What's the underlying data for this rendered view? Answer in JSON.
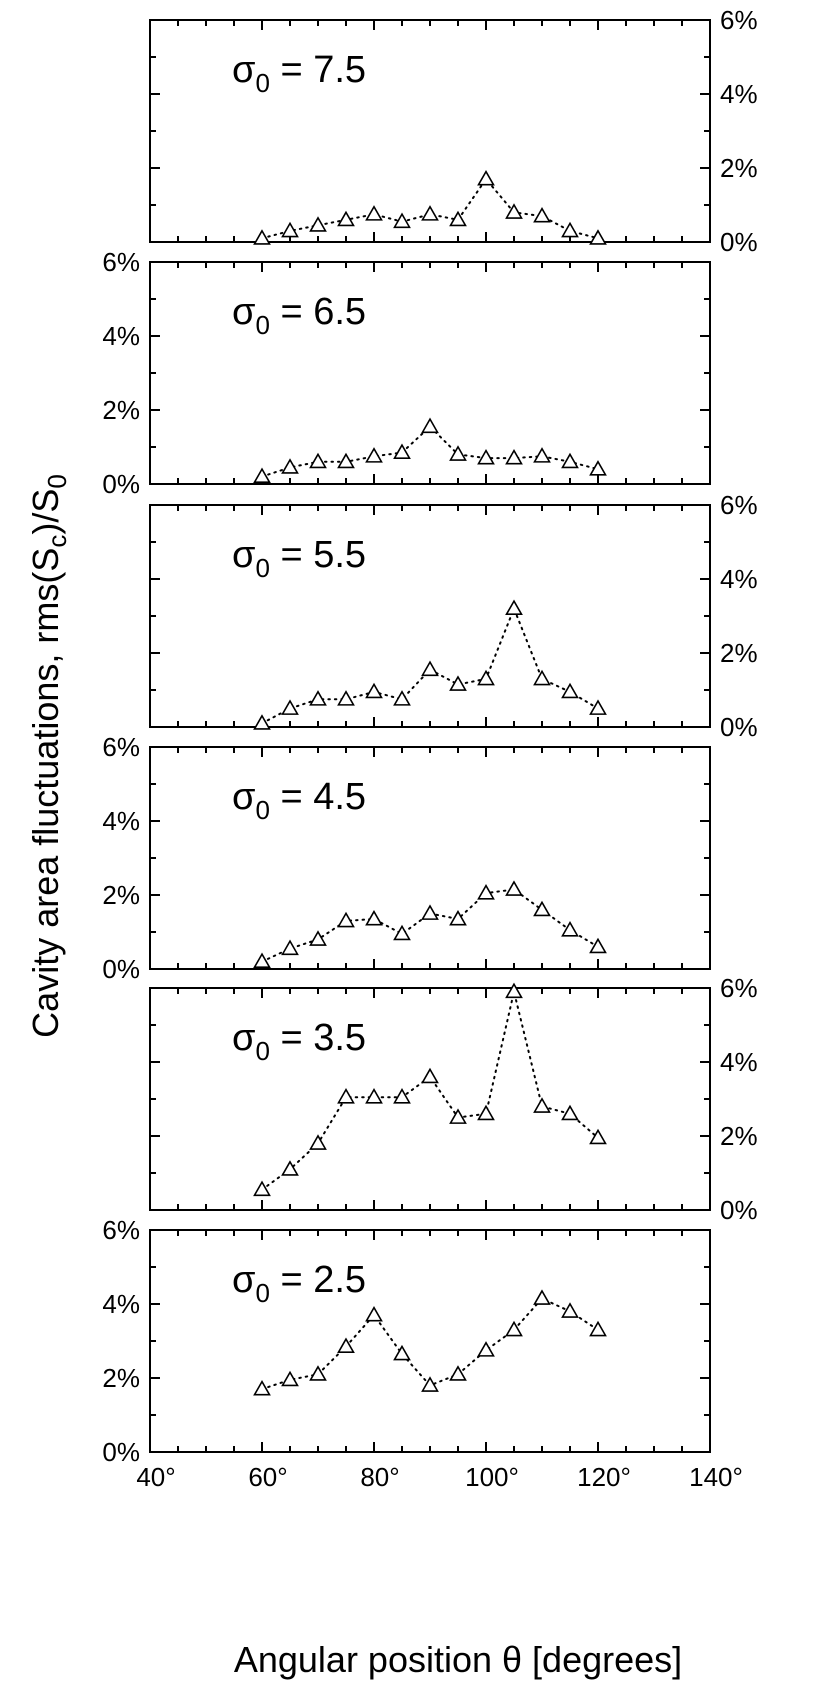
{
  "figure": {
    "xlabel": "Angular position θ [degrees]",
    "ylabel": "Cavity area fluctuations, rms(S",
    "ylabel_sub1": "c",
    "ylabel_mid": ")/S",
    "ylabel_sub2": "0"
  },
  "chart_data": [
    {
      "type": "line",
      "marker": "triangle",
      "line_style": "dotted",
      "label_symbol": "σ",
      "label_sub": "0",
      "label_value": " = 7.5",
      "x": [
        60,
        65,
        70,
        75,
        80,
        85,
        90,
        95,
        100,
        105,
        110,
        115,
        120
      ],
      "y": [
        0.1,
        0.3,
        0.45,
        0.6,
        0.75,
        0.55,
        0.75,
        0.6,
        1.7,
        0.8,
        0.7,
        0.3,
        0.1
      ],
      "xlim": [
        40,
        140
      ],
      "ylim": [
        0,
        6
      ],
      "yticks": [
        "0%",
        "2%",
        "4%",
        "6%"
      ],
      "y_axis_side": "right"
    },
    {
      "type": "line",
      "marker": "triangle",
      "line_style": "dotted",
      "label_symbol": "σ",
      "label_sub": "0",
      "label_value": " = 6.5",
      "x": [
        60,
        65,
        70,
        75,
        80,
        85,
        90,
        95,
        100,
        105,
        110,
        115,
        120
      ],
      "y": [
        0.2,
        0.45,
        0.6,
        0.6,
        0.75,
        0.85,
        1.55,
        0.8,
        0.7,
        0.7,
        0.75,
        0.6,
        0.4
      ],
      "xlim": [
        40,
        140
      ],
      "ylim": [
        0,
        6
      ],
      "yticks": [
        "0%",
        "2%",
        "4%",
        "6%"
      ],
      "y_axis_side": "left"
    },
    {
      "type": "line",
      "marker": "triangle",
      "line_style": "dotted",
      "label_symbol": "σ",
      "label_sub": "0",
      "label_value": " = 5.5",
      "x": [
        60,
        65,
        70,
        75,
        80,
        85,
        90,
        95,
        100,
        105,
        110,
        115,
        120
      ],
      "y": [
        0.1,
        0.5,
        0.75,
        0.75,
        0.95,
        0.75,
        1.55,
        1.15,
        1.3,
        3.2,
        1.3,
        0.95,
        0.5
      ],
      "xlim": [
        40,
        140
      ],
      "ylim": [
        0,
        6
      ],
      "yticks": [
        "0%",
        "2%",
        "4%",
        "6%"
      ],
      "y_axis_side": "right"
    },
    {
      "type": "line",
      "marker": "triangle",
      "line_style": "dotted",
      "label_symbol": "σ",
      "label_sub": "0",
      "label_value": " = 4.5",
      "x": [
        60,
        65,
        70,
        75,
        80,
        85,
        90,
        95,
        100,
        105,
        110,
        115,
        120
      ],
      "y": [
        0.2,
        0.55,
        0.8,
        1.3,
        1.35,
        0.95,
        1.5,
        1.35,
        2.05,
        2.15,
        1.6,
        1.05,
        0.6
      ],
      "xlim": [
        40,
        140
      ],
      "ylim": [
        0,
        6
      ],
      "yticks": [
        "0%",
        "2%",
        "4%",
        "6%"
      ],
      "y_axis_side": "left"
    },
    {
      "type": "line",
      "marker": "triangle",
      "line_style": "dotted",
      "label_symbol": "σ",
      "label_sub": "0",
      "label_value": " = 3.5",
      "x": [
        60,
        65,
        70,
        75,
        80,
        85,
        90,
        95,
        100,
        105,
        110,
        115,
        120
      ],
      "y": [
        0.55,
        1.1,
        1.8,
        3.05,
        3.05,
        3.05,
        3.6,
        2.5,
        2.6,
        5.9,
        2.8,
        2.6,
        1.95
      ],
      "xlim": [
        40,
        140
      ],
      "ylim": [
        0,
        6
      ],
      "yticks": [
        "0%",
        "2%",
        "4%",
        "6%"
      ],
      "y_axis_side": "right"
    },
    {
      "type": "line",
      "marker": "triangle",
      "line_style": "dotted",
      "label_symbol": "σ",
      "label_sub": "0",
      "label_value": " = 2.5",
      "x": [
        60,
        65,
        70,
        75,
        80,
        85,
        90,
        95,
        100,
        105,
        110,
        115,
        120
      ],
      "y": [
        1.7,
        1.95,
        2.1,
        2.85,
        3.7,
        2.65,
        1.8,
        2.1,
        2.75,
        3.3,
        4.15,
        3.8,
        3.3
      ],
      "xlim": [
        40,
        140
      ],
      "ylim": [
        0,
        6
      ],
      "yticks": [
        "0%",
        "2%",
        "4%",
        "6%"
      ],
      "y_axis_side": "left",
      "xticks": [
        "40°",
        "60°",
        "80°",
        "100°",
        "120°",
        "140°"
      ]
    }
  ]
}
